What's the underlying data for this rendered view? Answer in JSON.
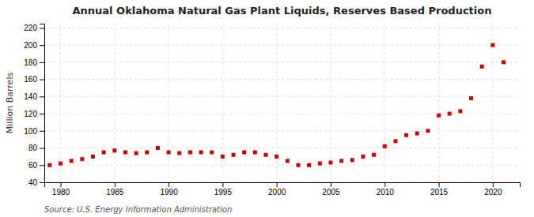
{
  "chart_data": {
    "type": "scatter",
    "title": "Annual Oklahoma Natural Gas Plant Liquids, Reserves Based Production",
    "ylabel": "Million Barrels",
    "source": "Source: U.S. Energy Information Administration",
    "color": "#cc0000",
    "marker": "square",
    "x": [
      1979,
      1980,
      1981,
      1982,
      1983,
      1984,
      1985,
      1986,
      1987,
      1988,
      1989,
      1990,
      1991,
      1992,
      1993,
      1994,
      1995,
      1996,
      1997,
      1998,
      1999,
      2000,
      2001,
      2002,
      2003,
      2004,
      2005,
      2006,
      2007,
      2008,
      2009,
      2010,
      2011,
      2012,
      2013,
      2014,
      2015,
      2016,
      2017,
      2018,
      2019,
      2020,
      2021
    ],
    "values": [
      60,
      62,
      65,
      67,
      70,
      75,
      77,
      75,
      74,
      75,
      80,
      75,
      74,
      75,
      75,
      75,
      70,
      72,
      75,
      75,
      72,
      70,
      65,
      60,
      60,
      62,
      63,
      65,
      66,
      70,
      72,
      82,
      88,
      95,
      97,
      100,
      118,
      120,
      123,
      138,
      175,
      200,
      180
    ],
    "xlim": [
      1978.5,
      2022.5
    ],
    "ylim": [
      40,
      225
    ],
    "xticks": [
      1980,
      1985,
      1990,
      1995,
      2000,
      2005,
      2010,
      2015,
      2020
    ],
    "yticks": [
      40,
      60,
      80,
      100,
      120,
      140,
      160,
      180,
      200,
      220
    ],
    "grid": true
  }
}
